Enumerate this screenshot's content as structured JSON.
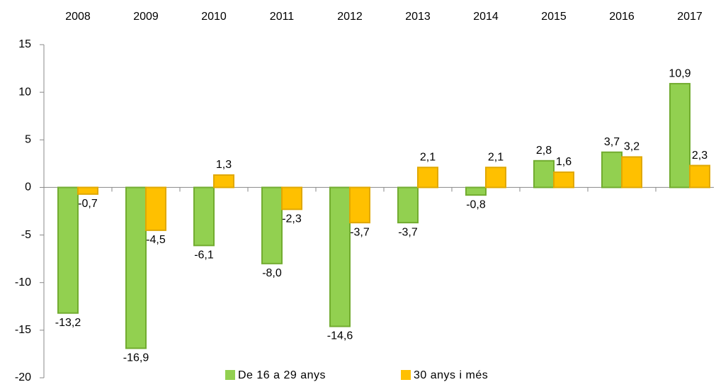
{
  "chart_data": {
    "type": "bar",
    "categories": [
      "2008",
      "2009",
      "2010",
      "2011",
      "2012",
      "2013",
      "2014",
      "2015",
      "2016",
      "2017"
    ],
    "series": [
      {
        "name": "De 16 a 29 anys",
        "color": "#92d050",
        "values": [
          -13.2,
          -16.9,
          -6.1,
          -8.0,
          -14.6,
          -3.7,
          -0.8,
          2.8,
          3.7,
          10.9
        ],
        "value_labels": [
          "-13,2",
          "-16,9",
          "-6,1",
          "-8,0",
          "-14,6",
          "-3,7",
          "-0,8",
          "2,8",
          "3,7",
          "10,9"
        ]
      },
      {
        "name": "30 anys i més",
        "color": "#ffc000",
        "values": [
          -0.7,
          -4.5,
          1.3,
          -2.3,
          -3.7,
          2.1,
          2.1,
          1.6,
          3.2,
          2.3
        ],
        "value_labels": [
          "-0,7",
          "-4,5",
          "1,3",
          "-2,3",
          "-3,7",
          "2,1",
          "2,1",
          "1,6",
          "3,2",
          "2,3"
        ]
      }
    ],
    "ylim": [
      -20,
      15
    ],
    "yticks": [
      -20,
      -15,
      -10,
      -5,
      0,
      5,
      10,
      15
    ],
    "legend": "bottom"
  }
}
